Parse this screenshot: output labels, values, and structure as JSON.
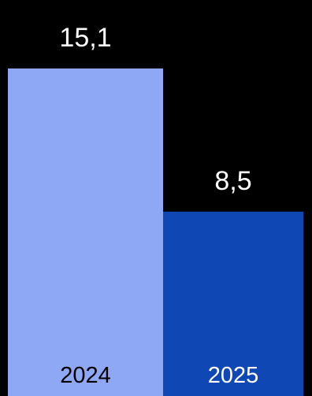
{
  "chart_data": {
    "type": "bar",
    "categories": [
      "2024",
      "2025"
    ],
    "values": [
      15.1,
      8.5
    ],
    "value_labels": [
      "15,1",
      "8,5"
    ],
    "colors": [
      "#8fa8f5",
      "#0f48b4"
    ],
    "category_label_colors": [
      "#000000",
      "#ffffff"
    ],
    "value_label_color": "#ffffff",
    "background": "#000000",
    "ylim": [
      0,
      15.1
    ],
    "grid": false,
    "legend": "none"
  }
}
